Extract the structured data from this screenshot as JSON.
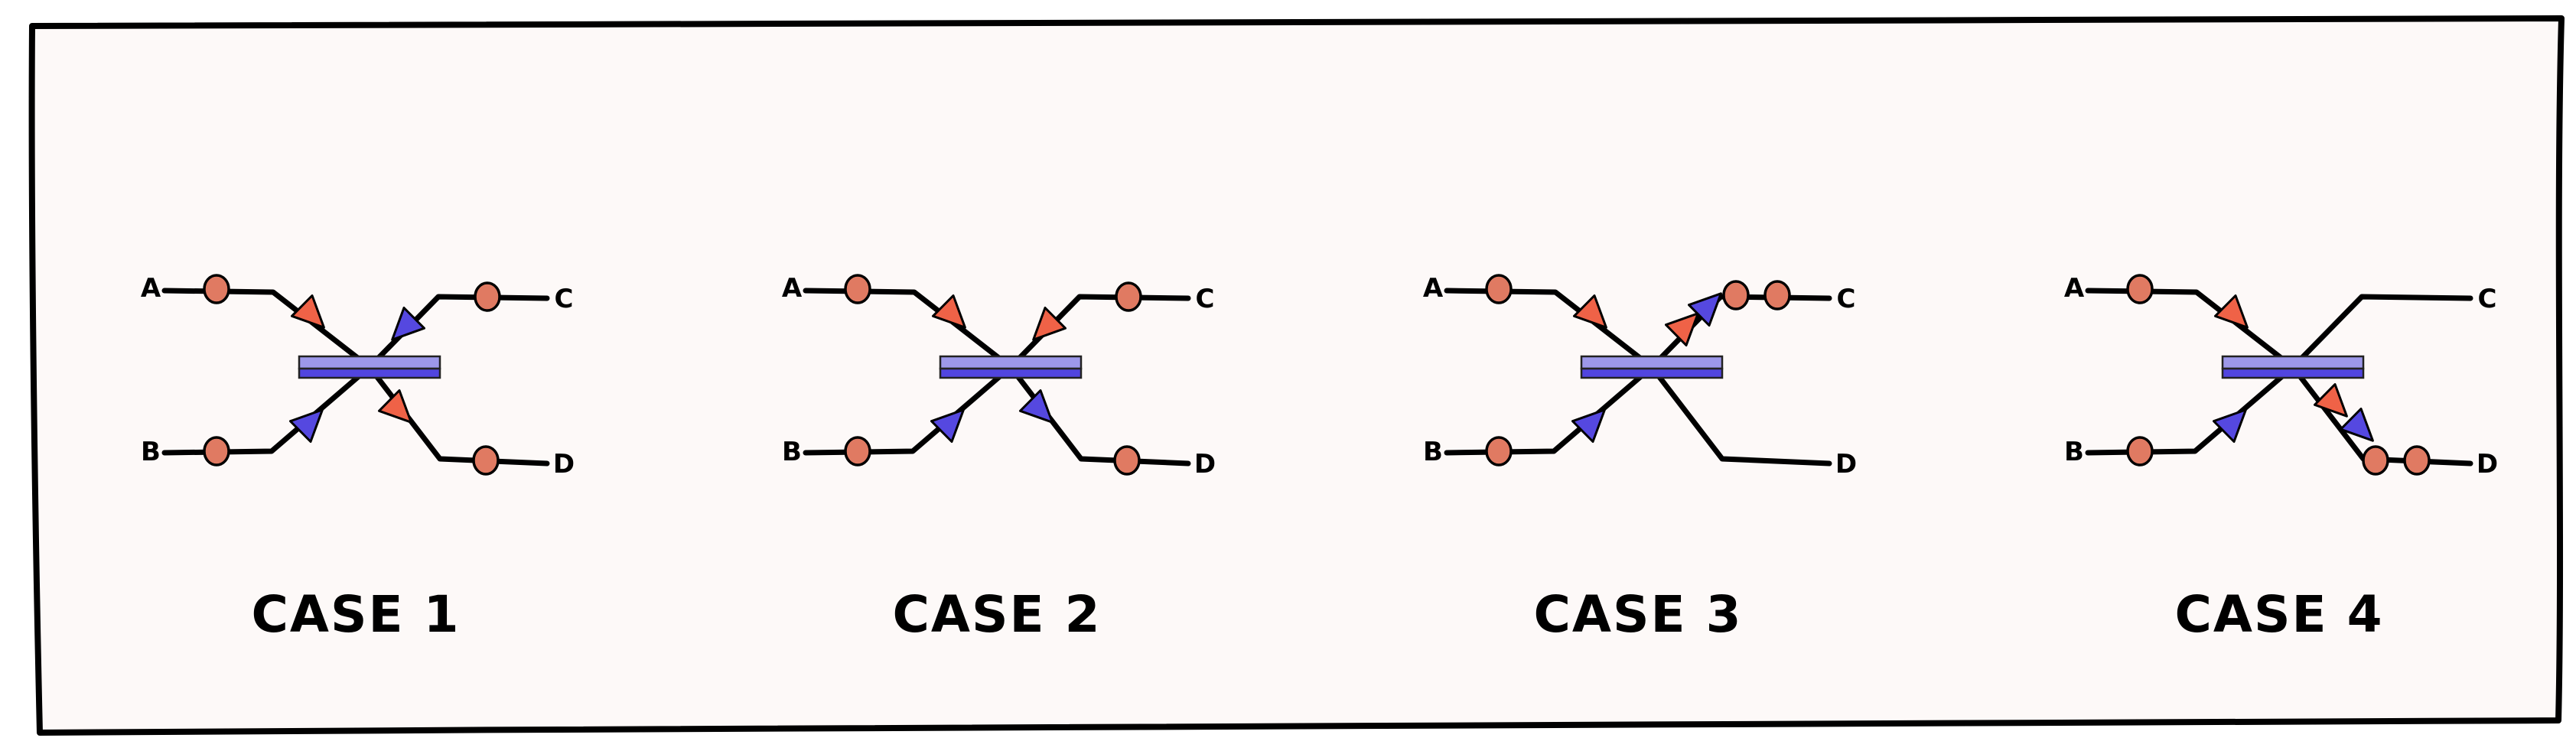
{
  "colors": {
    "background": "#fdf9f8",
    "border": "#000000",
    "photon": "#e07a62",
    "arrow_red": "#ef6247",
    "arrow_blue": "#5548e0",
    "splitter_light": "#9d98ea",
    "splitter_dark": "#5145df"
  },
  "ports": [
    "A",
    "B",
    "C",
    "D"
  ],
  "cases": [
    {
      "label": "CASE 1",
      "arrows": [
        {
          "port": "A",
          "color": "red",
          "dir": "in"
        },
        {
          "port": "C",
          "color": "blue",
          "dir": "in"
        },
        {
          "port": "B",
          "color": "blue",
          "dir": "in"
        },
        {
          "port": "D",
          "color": "red",
          "dir": "out"
        }
      ],
      "photons": {
        "A": 1,
        "B": 1,
        "C": 1,
        "D": 1
      }
    },
    {
      "label": "CASE 2",
      "arrows": [
        {
          "port": "A",
          "color": "red",
          "dir": "in"
        },
        {
          "port": "C",
          "color": "red",
          "dir": "in"
        },
        {
          "port": "B",
          "color": "blue",
          "dir": "in"
        },
        {
          "port": "D",
          "color": "blue",
          "dir": "out"
        }
      ],
      "photons": {
        "A": 1,
        "B": 1,
        "C": 1,
        "D": 1
      }
    },
    {
      "label": "CASE 3",
      "arrows": [
        {
          "port": "A",
          "color": "red",
          "dir": "in"
        },
        {
          "port": "B",
          "color": "blue",
          "dir": "in"
        },
        {
          "port": "C",
          "color": "red",
          "dir": "out"
        },
        {
          "port": "C",
          "color": "blue",
          "dir": "out"
        }
      ],
      "photons": {
        "A": 1,
        "B": 1,
        "C": 2,
        "D": 0
      }
    },
    {
      "label": "CASE 4",
      "arrows": [
        {
          "port": "A",
          "color": "red",
          "dir": "in"
        },
        {
          "port": "B",
          "color": "blue",
          "dir": "in"
        },
        {
          "port": "D",
          "color": "red",
          "dir": "out"
        },
        {
          "port": "D",
          "color": "blue",
          "dir": "out"
        }
      ],
      "photons": {
        "A": 1,
        "B": 1,
        "C": 0,
        "D": 2
      }
    }
  ]
}
